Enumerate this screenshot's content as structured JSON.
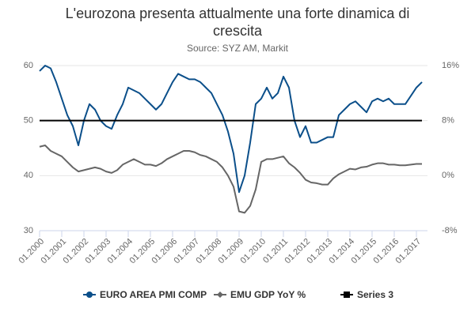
{
  "chart_data": {
    "type": "line",
    "title": "L'eurozona presenta attualmente una forte dinamica di crescita",
    "subtitle": "Source: SYZ AM, Markit",
    "categories": [
      "01.2000",
      null,
      null,
      null,
      "01.2001",
      null,
      null,
      null,
      "01.2002",
      null,
      null,
      null,
      "01.2003",
      null,
      null,
      null,
      "01.2004",
      null,
      null,
      null,
      "01.2005",
      null,
      null,
      null,
      "01.2006",
      null,
      null,
      null,
      "01.2007",
      null,
      null,
      null,
      "01.2008",
      null,
      null,
      null,
      "01.2009",
      null,
      null,
      null,
      "01.2010",
      null,
      null,
      null,
      "01.2011",
      null,
      null,
      null,
      "01.2012",
      null,
      null,
      null,
      "01.2013",
      null,
      null,
      null,
      "01.2014",
      null,
      null,
      null,
      "01.2015",
      null,
      null,
      null,
      "01.2016",
      null,
      null,
      null,
      "01.2017",
      null
    ],
    "series": [
      {
        "name": "EURO AREA PMI COMP",
        "color": "#0b4f8a",
        "axis": "y",
        "values": [
          59,
          60,
          59.5,
          57,
          54,
          51,
          49,
          45.5,
          50,
          53,
          52,
          50,
          49,
          48.5,
          51,
          53,
          56,
          55.5,
          55,
          54,
          53,
          52,
          53,
          55,
          57,
          58.5,
          58,
          57.5,
          57.5,
          57,
          56,
          55,
          53,
          51,
          48,
          44,
          37,
          40,
          46,
          53,
          54,
          56,
          54,
          55,
          58,
          56,
          50,
          47,
          49,
          46,
          46,
          46.5,
          47,
          47,
          51,
          52,
          53,
          53.5,
          52.5,
          51.5,
          53.5,
          54,
          53.5,
          54,
          53,
          53,
          53,
          54.5,
          56,
          57
        ]
      },
      {
        "name": "EMU GDP YoY %",
        "color": "#666666",
        "axis": "y2",
        "values": [
          4.2,
          4.4,
          3.6,
          3.2,
          2.8,
          2.0,
          1.2,
          0.6,
          0.8,
          1.0,
          1.2,
          1.0,
          0.6,
          0.4,
          0.8,
          1.6,
          2.0,
          2.4,
          2.0,
          1.6,
          1.6,
          1.4,
          1.8,
          2.4,
          2.8,
          3.2,
          3.6,
          3.6,
          3.4,
          3.0,
          2.8,
          2.4,
          2.0,
          1.2,
          0.0,
          -1.6,
          -5.2,
          -5.4,
          -4.4,
          -2.0,
          2.0,
          2.4,
          2.4,
          2.6,
          2.8,
          1.8,
          1.2,
          0.4,
          -0.6,
          -1.0,
          -1.1,
          -1.3,
          -1.3,
          -0.4,
          0.2,
          0.6,
          1.0,
          0.9,
          1.2,
          1.3,
          1.6,
          1.8,
          1.8,
          1.6,
          1.6,
          1.5,
          1.5,
          1.6,
          1.7,
          1.7
        ]
      },
      {
        "name": "Series 3",
        "color": "#000000",
        "axis": "y",
        "values": [
          50,
          50,
          50,
          50,
          50,
          50,
          50,
          50,
          50,
          50,
          50,
          50,
          50,
          50,
          50,
          50,
          50,
          50,
          50,
          50,
          50,
          50,
          50,
          50,
          50,
          50,
          50,
          50,
          50,
          50,
          50,
          50,
          50,
          50,
          50,
          50,
          50,
          50,
          50,
          50,
          50,
          50,
          50,
          50,
          50,
          50,
          50,
          50,
          50,
          50,
          50,
          50,
          50,
          50,
          50,
          50,
          50,
          50,
          50,
          50,
          50,
          50,
          50,
          50,
          50,
          50,
          50,
          50,
          50,
          50
        ]
      }
    ],
    "ylim": [
      30,
      60
    ],
    "yticks": [
      30,
      40,
      50,
      60
    ],
    "y2lim": [
      -8,
      16
    ],
    "y2ticks": [
      {
        "value": -8,
        "label": "-8%"
      },
      {
        "value": 0,
        "label": "0%"
      },
      {
        "value": 8,
        "label": "8%"
      },
      {
        "value": 16,
        "label": "16%"
      }
    ],
    "grid": true,
    "legend": "bottom"
  }
}
